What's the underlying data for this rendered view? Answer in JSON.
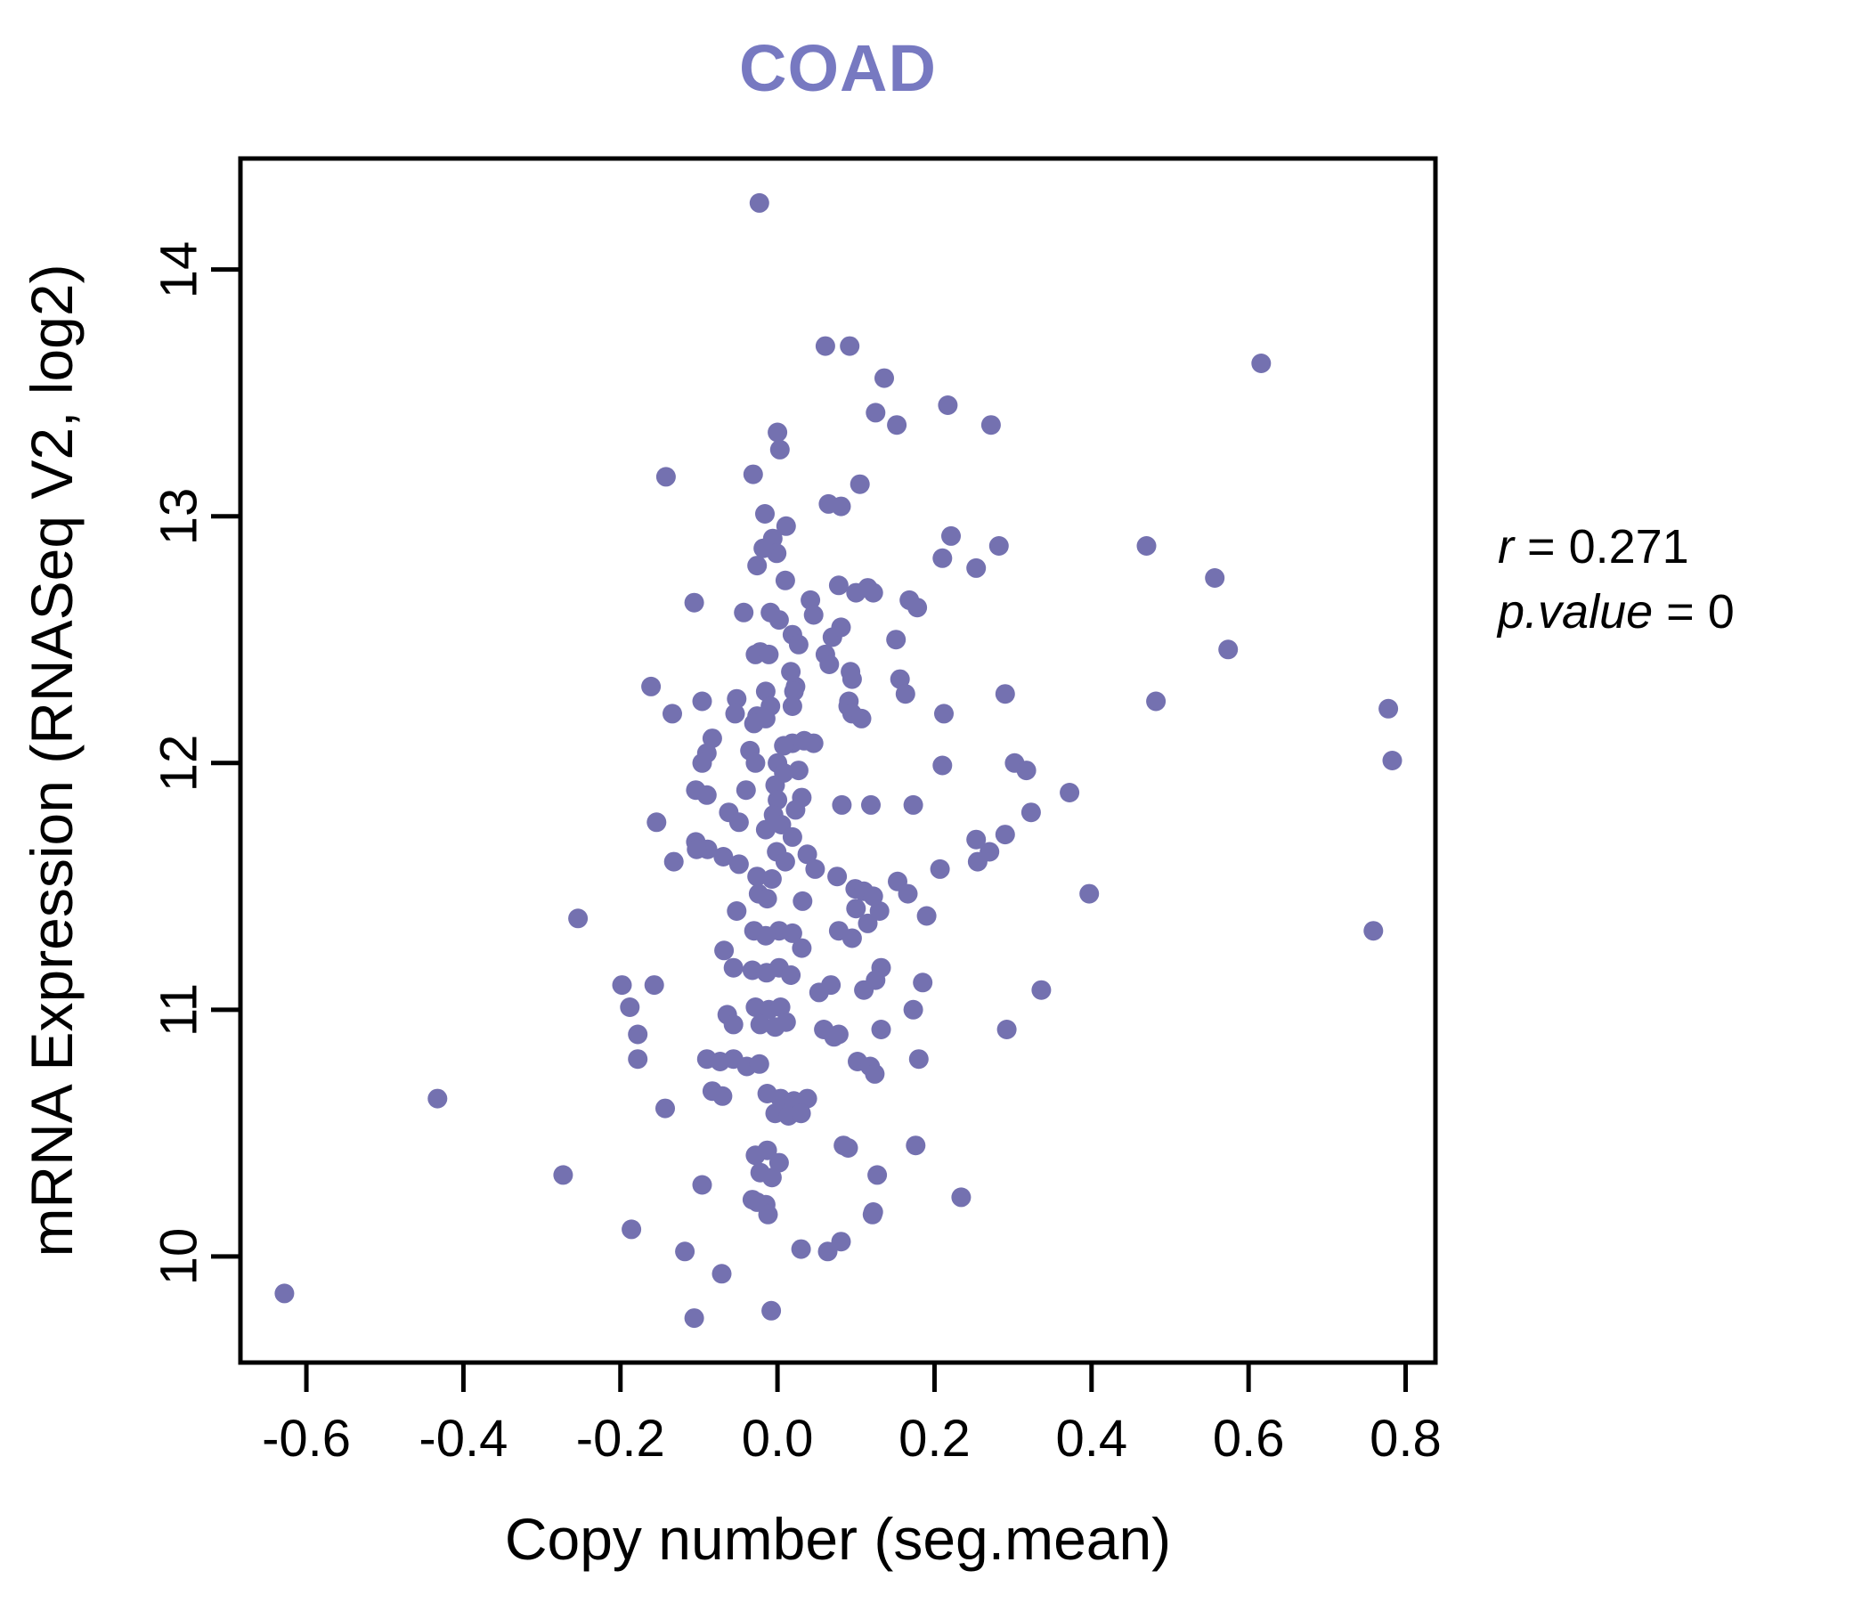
{
  "title": "COAD",
  "annotation": {
    "r_label": "r",
    "eq": "=",
    "r_value": "0.271",
    "p_label": "p.value",
    "p_value": "0"
  },
  "chart_data": {
    "type": "scatter",
    "title": "COAD",
    "xlabel": "Copy number (seg.mean)",
    "ylabel": "mRNA Expression (RNASeq V2, log2)",
    "xlim": [
      -0.684,
      0.838
    ],
    "ylim": [
      9.57,
      14.45
    ],
    "grid": false,
    "legend": "none",
    "point_color": "#7471B0",
    "title_color": "#7779C1",
    "axis_color": "#000000",
    "x_ticks": [
      -0.6,
      -0.4,
      -0.2,
      0.0,
      0.2,
      0.4,
      0.6,
      0.8
    ],
    "x_tick_labels": [
      "-0.6",
      "-0.4",
      "-0.2",
      "0.0",
      "0.2",
      "0.4",
      "0.6",
      "0.8"
    ],
    "y_ticks": [
      10,
      11,
      12,
      13,
      14
    ],
    "y_tick_labels": [
      "10",
      "11",
      "12",
      "13",
      "14"
    ],
    "points": [
      [
        -0.023,
        14.27
      ],
      [
        0.061,
        13.69
      ],
      [
        0.092,
        13.69
      ],
      [
        0.616,
        13.62
      ],
      [
        0.136,
        13.56
      ],
      [
        0.125,
        13.42
      ],
      [
        0.217,
        13.45
      ],
      [
        0.152,
        13.37
      ],
      [
        0.272,
        13.37
      ],
      [
        0.0,
        13.34
      ],
      [
        0.003,
        13.27
      ],
      [
        -0.142,
        13.16
      ],
      [
        -0.031,
        13.17
      ],
      [
        0.105,
        13.13
      ],
      [
        0.065,
        13.05
      ],
      [
        0.081,
        13.04
      ],
      [
        -0.016,
        13.01
      ],
      [
        0.011,
        12.96
      ],
      [
        -0.006,
        12.91
      ],
      [
        0.221,
        12.92
      ],
      [
        0.282,
        12.88
      ],
      [
        0.47,
        12.88
      ],
      [
        -0.001,
        12.85
      ],
      [
        -0.018,
        12.87
      ],
      [
        -0.026,
        12.8
      ],
      [
        0.21,
        12.83
      ],
      [
        0.253,
        12.79
      ],
      [
        0.01,
        12.74
      ],
      [
        0.557,
        12.75
      ],
      [
        0.078,
        12.72
      ],
      [
        0.115,
        12.71
      ],
      [
        0.1,
        12.69
      ],
      [
        0.122,
        12.69
      ],
      [
        -0.106,
        12.65
      ],
      [
        0.168,
        12.66
      ],
      [
        0.042,
        12.66
      ],
      [
        -0.043,
        12.61
      ],
      [
        -0.009,
        12.61
      ],
      [
        0.002,
        12.58
      ],
      [
        0.046,
        12.6
      ],
      [
        0.178,
        12.63
      ],
      [
        0.07,
        12.51
      ],
      [
        0.081,
        12.55
      ],
      [
        0.019,
        12.52
      ],
      [
        0.151,
        12.5
      ],
      [
        0.027,
        12.48
      ],
      [
        -0.022,
        12.45
      ],
      [
        -0.028,
        12.44
      ],
      [
        -0.011,
        12.44
      ],
      [
        0.061,
        12.44
      ],
      [
        0.574,
        12.46
      ],
      [
        0.066,
        12.4
      ],
      [
        0.017,
        12.37
      ],
      [
        0.093,
        12.37
      ],
      [
        0.023,
        12.31
      ],
      [
        0.095,
        12.34
      ],
      [
        0.156,
        12.34
      ],
      [
        -0.161,
        12.31
      ],
      [
        0.29,
        12.28
      ],
      [
        0.163,
        12.28
      ],
      [
        -0.015,
        12.29
      ],
      [
        0.021,
        12.29
      ],
      [
        -0.096,
        12.25
      ],
      [
        -0.052,
        12.26
      ],
      [
        0.091,
        12.25
      ],
      [
        0.482,
        12.25
      ],
      [
        0.778,
        12.22
      ],
      [
        -0.009,
        12.23
      ],
      [
        0.019,
        12.23
      ],
      [
        0.09,
        12.23
      ],
      [
        -0.134,
        12.2
      ],
      [
        -0.054,
        12.2
      ],
      [
        0.095,
        12.2
      ],
      [
        0.212,
        12.2
      ],
      [
        -0.026,
        12.19
      ],
      [
        -0.015,
        12.18
      ],
      [
        0.107,
        12.18
      ],
      [
        -0.03,
        12.16
      ],
      [
        -0.083,
        12.1
      ],
      [
        0.034,
        12.09
      ],
      [
        0.046,
        12.08
      ],
      [
        0.019,
        12.08
      ],
      [
        0.008,
        12.07
      ],
      [
        -0.035,
        12.05
      ],
      [
        -0.09,
        12.04
      ],
      [
        0.783,
        12.01
      ],
      [
        0.302,
        12.0
      ],
      [
        0.0,
        12.0
      ],
      [
        -0.028,
        12.0
      ],
      [
        -0.096,
        12.0
      ],
      [
        0.21,
        11.99
      ],
      [
        0.317,
        11.97
      ],
      [
        0.027,
        11.97
      ],
      [
        0.008,
        11.96
      ],
      [
        -0.003,
        11.91
      ],
      [
        -0.104,
        11.89
      ],
      [
        -0.04,
        11.89
      ],
      [
        0.372,
        11.88
      ],
      [
        -0.09,
        11.87
      ],
      [
        0.031,
        11.86
      ],
      [
        0.0,
        11.85
      ],
      [
        0.119,
        11.83
      ],
      [
        0.173,
        11.83
      ],
      [
        0.023,
        11.81
      ],
      [
        0.082,
        11.83
      ],
      [
        -0.062,
        11.8
      ],
      [
        0.323,
        11.8
      ],
      [
        -0.005,
        11.79
      ],
      [
        -0.154,
        11.76
      ],
      [
        -0.049,
        11.76
      ],
      [
        0.005,
        11.75
      ],
      [
        -0.015,
        11.73
      ],
      [
        0.29,
        11.71
      ],
      [
        0.019,
        11.7
      ],
      [
        0.253,
        11.69
      ],
      [
        -0.104,
        11.68
      ],
      [
        -0.089,
        11.65
      ],
      [
        -0.103,
        11.65
      ],
      [
        -0.001,
        11.64
      ],
      [
        0.27,
        11.64
      ],
      [
        0.038,
        11.63
      ],
      [
        -0.069,
        11.62
      ],
      [
        -0.132,
        11.6
      ],
      [
        0.01,
        11.6
      ],
      [
        0.255,
        11.6
      ],
      [
        -0.049,
        11.59
      ],
      [
        0.048,
        11.57
      ],
      [
        0.207,
        11.57
      ],
      [
        -0.026,
        11.54
      ],
      [
        0.076,
        11.54
      ],
      [
        -0.007,
        11.53
      ],
      [
        0.153,
        11.52
      ],
      [
        0.099,
        11.49
      ],
      [
        0.11,
        11.48
      ],
      [
        -0.024,
        11.47
      ],
      [
        0.397,
        11.47
      ],
      [
        0.166,
        11.47
      ],
      [
        -0.013,
        11.45
      ],
      [
        0.032,
        11.44
      ],
      [
        -0.052,
        11.4
      ],
      [
        0.19,
        11.38
      ],
      [
        -0.254,
        11.37
      ],
      [
        0.115,
        11.35
      ],
      [
        0.078,
        11.32
      ],
      [
        -0.03,
        11.32
      ],
      [
        0.002,
        11.32
      ],
      [
        0.759,
        11.32
      ],
      [
        0.095,
        11.29
      ],
      [
        -0.015,
        11.3
      ],
      [
        0.019,
        11.31
      ],
      [
        0.031,
        11.25
      ],
      [
        -0.068,
        11.24
      ],
      [
        0.1,
        11.41
      ],
      [
        0.13,
        11.4
      ],
      [
        0.122,
        11.46
      ],
      [
        -0.056,
        11.17
      ],
      [
        0.132,
        11.17
      ],
      [
        -0.032,
        11.16
      ],
      [
        -0.014,
        11.15
      ],
      [
        0.002,
        11.17
      ],
      [
        0.017,
        11.14
      ],
      [
        0.125,
        11.12
      ],
      [
        0.185,
        11.11
      ],
      [
        -0.198,
        11.1
      ],
      [
        -0.157,
        11.1
      ],
      [
        0.068,
        11.1
      ],
      [
        0.11,
        11.08
      ],
      [
        0.336,
        11.08
      ],
      [
        0.053,
        11.07
      ],
      [
        -0.028,
        11.01
      ],
      [
        -0.188,
        11.01
      ],
      [
        -0.011,
        11.0
      ],
      [
        0.004,
        11.01
      ],
      [
        0.173,
        11.0
      ],
      [
        -0.064,
        10.98
      ],
      [
        0.011,
        10.95
      ],
      [
        -0.022,
        10.94
      ],
      [
        -0.056,
        10.94
      ],
      [
        -0.003,
        10.93
      ],
      [
        0.059,
        10.92
      ],
      [
        0.132,
        10.92
      ],
      [
        0.292,
        10.92
      ],
      [
        -0.178,
        10.9
      ],
      [
        0.078,
        10.9
      ],
      [
        0.072,
        10.89
      ],
      [
        -0.09,
        10.8
      ],
      [
        -0.073,
        10.79
      ],
      [
        -0.056,
        10.8
      ],
      [
        -0.039,
        10.77
      ],
      [
        -0.023,
        10.78
      ],
      [
        -0.178,
        10.8
      ],
      [
        0.18,
        10.8
      ],
      [
        0.102,
        10.79
      ],
      [
        0.118,
        10.77
      ],
      [
        0.124,
        10.74
      ],
      [
        -0.083,
        10.67
      ],
      [
        -0.07,
        10.65
      ],
      [
        -0.013,
        10.66
      ],
      [
        0.004,
        10.64
      ],
      [
        0.021,
        10.63
      ],
      [
        0.038,
        10.64
      ],
      [
        -0.433,
        10.64
      ],
      [
        -0.003,
        10.58
      ],
      [
        0.014,
        10.57
      ],
      [
        0.03,
        10.58
      ],
      [
        -0.143,
        10.6
      ],
      [
        0.084,
        10.45
      ],
      [
        0.09,
        10.44
      ],
      [
        0.176,
        10.45
      ],
      [
        -0.028,
        10.41
      ],
      [
        -0.013,
        10.43
      ],
      [
        0.002,
        10.38
      ],
      [
        -0.022,
        10.34
      ],
      [
        -0.007,
        10.32
      ],
      [
        -0.273,
        10.33
      ],
      [
        0.127,
        10.33
      ],
      [
        -0.096,
        10.29
      ],
      [
        0.234,
        10.24
      ],
      [
        -0.032,
        10.23
      ],
      [
        -0.015,
        10.21
      ],
      [
        -0.026,
        10.22
      ],
      [
        0.122,
        10.18
      ],
      [
        -0.012,
        10.17
      ],
      [
        0.121,
        10.17
      ],
      [
        -0.186,
        10.11
      ],
      [
        0.081,
        10.06
      ],
      [
        -0.118,
        10.02
      ],
      [
        0.03,
        10.03
      ],
      [
        0.064,
        10.02
      ],
      [
        -0.071,
        9.93
      ],
      [
        -0.628,
        9.85
      ],
      [
        -0.008,
        9.78
      ],
      [
        -0.106,
        9.75
      ]
    ]
  }
}
